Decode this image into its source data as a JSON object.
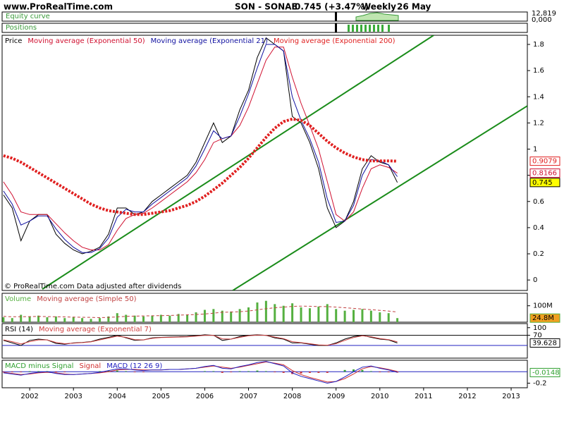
{
  "header": {
    "site": "www.ProRealTime.com",
    "symbol": "SON - SONAE",
    "quote": "0.745 (+3.47%)",
    "period": "Weekly",
    "date": "26 May"
  },
  "equity": {
    "title": "Equity curve",
    "values": [
      "12,819",
      "0,000"
    ]
  },
  "positions": {
    "title": "Positions"
  },
  "chart_data": [
    {
      "type": "line",
      "x": [
        2001.4,
        2001.6,
        2001.8,
        2002,
        2002.2,
        2002.4,
        2002.6,
        2002.8,
        2003,
        2003.2,
        2003.4,
        2003.6,
        2003.8,
        2004,
        2004.2,
        2004.4,
        2004.6,
        2004.8,
        2005,
        2005.2,
        2005.4,
        2005.6,
        2005.8,
        2006,
        2006.2,
        2006.4,
        2006.6,
        2006.8,
        2007,
        2007.2,
        2007.4,
        2007.6,
        2007.8,
        2008,
        2008.2,
        2008.4,
        2008.6,
        2008.8,
        2009,
        2009.2,
        2009.4,
        2009.6,
        2009.8,
        2010,
        2010.2,
        2010.4
      ],
      "xlim": [
        2001.37,
        2013.37
      ],
      "ylim": [
        -0.08,
        1.87
      ],
      "yticks": [
        0,
        0.2,
        0.4,
        0.6,
        0.8,
        1,
        1.2,
        1.4,
        1.6,
        1.8
      ],
      "annotation": "© ProRealTime.com Data adjusted after dividends",
      "series": [
        {
          "name": "Price",
          "color": "#000000",
          "tag": true,
          "tag_fill": "#ffff00",
          "values": [
            0.65,
            0.55,
            0.3,
            0.45,
            0.5,
            0.5,
            0.35,
            0.28,
            0.23,
            0.2,
            0.22,
            0.25,
            0.35,
            0.55,
            0.55,
            0.5,
            0.52,
            0.6,
            0.65,
            0.7,
            0.75,
            0.8,
            0.9,
            1.05,
            1.2,
            1.05,
            1.1,
            1.3,
            1.45,
            1.7,
            1.85,
            1.8,
            1.75,
            1.25,
            1.2,
            1.05,
            0.85,
            0.55,
            0.4,
            0.45,
            0.6,
            0.85,
            0.95,
            0.9,
            0.88,
            0.745
          ]
        },
        {
          "name": "Moving average (Exponential 50)",
          "color": "#d01030",
          "tag": true,
          "values": [
            0.75,
            0.65,
            0.52,
            0.5,
            0.5,
            0.5,
            0.43,
            0.36,
            0.3,
            0.25,
            0.23,
            0.23,
            0.27,
            0.38,
            0.47,
            0.5,
            0.51,
            0.55,
            0.6,
            0.65,
            0.7,
            0.75,
            0.82,
            0.92,
            1.05,
            1.08,
            1.1,
            1.18,
            1.32,
            1.5,
            1.68,
            1.78,
            1.78,
            1.55,
            1.35,
            1.18,
            1.0,
            0.75,
            0.5,
            0.45,
            0.52,
            0.7,
            0.85,
            0.88,
            0.86,
            0.8166
          ]
        },
        {
          "name": "Moving average (Exponential 21)",
          "color": "#1010a0",
          "values": [
            0.68,
            0.58,
            0.42,
            0.45,
            0.49,
            0.49,
            0.39,
            0.31,
            0.25,
            0.21,
            0.21,
            0.24,
            0.32,
            0.48,
            0.54,
            0.52,
            0.52,
            0.58,
            0.63,
            0.68,
            0.73,
            0.78,
            0.87,
            1.0,
            1.14,
            1.08,
            1.1,
            1.25,
            1.42,
            1.62,
            1.8,
            1.8,
            1.75,
            1.4,
            1.22,
            1.08,
            0.9,
            0.62,
            0.44,
            0.45,
            0.57,
            0.8,
            0.92,
            0.91,
            0.88,
            0.79
          ]
        },
        {
          "name": "Moving average (Exponential 200)",
          "color": "#e02020",
          "dash": true,
          "width": 4,
          "tag": true,
          "values": [
            0.95,
            0.93,
            0.9,
            0.86,
            0.82,
            0.78,
            0.74,
            0.7,
            0.66,
            0.62,
            0.58,
            0.55,
            0.53,
            0.52,
            0.51,
            0.5,
            0.5,
            0.51,
            0.52,
            0.53,
            0.55,
            0.57,
            0.6,
            0.64,
            0.69,
            0.74,
            0.8,
            0.86,
            0.93,
            1.01,
            1.09,
            1.16,
            1.21,
            1.23,
            1.22,
            1.18,
            1.12,
            1.06,
            1.01,
            0.97,
            0.94,
            0.92,
            0.91,
            0.91,
            0.91,
            0.9079
          ]
        }
      ],
      "trendlines": [
        {
          "color": "#1a8c1a",
          "x": [
            2002.29,
            2011.23
          ],
          "values": [
            -0.07,
            1.87
          ]
        },
        {
          "color": "#1a8c1a",
          "x": [
            2006.64,
            2013.37
          ],
          "values": [
            -0.08,
            1.33
          ]
        }
      ]
    },
    {
      "type": "bar",
      "x": [
        2001.4,
        2001.6,
        2001.8,
        2002,
        2002.2,
        2002.4,
        2002.6,
        2002.8,
        2003,
        2003.2,
        2003.4,
        2003.6,
        2003.8,
        2004,
        2004.2,
        2004.4,
        2004.6,
        2004.8,
        2005,
        2005.2,
        2005.4,
        2005.6,
        2005.8,
        2006,
        2006.2,
        2006.4,
        2006.6,
        2006.8,
        2007,
        2007.2,
        2007.4,
        2007.6,
        2007.8,
        2008,
        2008.2,
        2008.4,
        2008.6,
        2008.8,
        2009,
        2009.2,
        2009.4,
        2009.6,
        2009.8,
        2010,
        2010.2,
        2010.4
      ],
      "xlim": [
        2001.37,
        2013.37
      ],
      "ylim": [
        0,
        176
      ],
      "yticks": [
        {
          "value": 100,
          "label": "100M"
        }
      ],
      "series": [
        {
          "name": "Volume",
          "color": "#55b040",
          "tag": true,
          "tag_fill": "#f0a020",
          "values": [
            30,
            25,
            45,
            35,
            40,
            30,
            35,
            25,
            30,
            25,
            20,
            25,
            35,
            55,
            45,
            40,
            35,
            40,
            45,
            40,
            50,
            45,
            60,
            75,
            80,
            70,
            65,
            80,
            90,
            120,
            130,
            110,
            100,
            115,
            90,
            85,
            95,
            110,
            80,
            70,
            75,
            80,
            70,
            60,
            55,
            24.8
          ],
          "value_labels": [
            null,
            null,
            null,
            null,
            null,
            null,
            null,
            null,
            null,
            null,
            null,
            null,
            null,
            null,
            null,
            null,
            null,
            null,
            null,
            null,
            null,
            null,
            null,
            null,
            null,
            null,
            null,
            null,
            null,
            null,
            null,
            null,
            null,
            null,
            null,
            null,
            null,
            null,
            null,
            null,
            null,
            null,
            null,
            null,
            null,
            "24.8M"
          ]
        },
        {
          "name": "Moving average (Simple 50)",
          "type": "line",
          "dash": true,
          "color": "#c04040",
          "values": [
            35,
            33,
            33,
            34,
            35,
            34,
            33,
            32,
            31,
            30,
            29,
            28,
            29,
            32,
            35,
            37,
            38,
            39,
            40,
            41,
            43,
            45,
            47,
            50,
            55,
            60,
            62,
            64,
            68,
            75,
            82,
            88,
            92,
            96,
            98,
            97,
            95,
            95,
            92,
            88,
            84,
            80,
            76,
            72,
            68,
            62
          ]
        }
      ]
    },
    {
      "type": "line",
      "x": [
        2001.4,
        2001.6,
        2001.8,
        2002,
        2002.2,
        2002.4,
        2002.6,
        2002.8,
        2003,
        2003.2,
        2003.4,
        2003.6,
        2003.8,
        2004,
        2004.2,
        2004.4,
        2004.6,
        2004.8,
        2005,
        2005.2,
        2005.4,
        2005.6,
        2005.8,
        2006,
        2006.2,
        2006.4,
        2006.6,
        2006.8,
        2007,
        2007.2,
        2007.4,
        2007.6,
        2007.8,
        2008,
        2008.2,
        2008.4,
        2008.6,
        2008.8,
        2009,
        2009.2,
        2009.4,
        2009.6,
        2009.8,
        2010,
        2010.2,
        2010.4
      ],
      "xlim": [
        2001.37,
        2013.37
      ],
      "ylim": [
        -20,
        116
      ],
      "yticks": [
        100,
        70
      ],
      "levels": [
        {
          "value": 70,
          "color": "#000000"
        },
        {
          "value": 30,
          "color": "#2020c0"
        }
      ],
      "series": [
        {
          "name": "RSI (14)",
          "color": "#000000",
          "tag": true,
          "values": [
            50,
            40,
            30,
            50,
            55,
            52,
            38,
            35,
            40,
            42,
            45,
            55,
            62,
            70,
            60,
            50,
            52,
            60,
            62,
            63,
            64,
            65,
            68,
            72,
            70,
            50,
            55,
            65,
            70,
            72,
            70,
            60,
            55,
            40,
            40,
            35,
            30,
            30,
            40,
            55,
            65,
            70,
            62,
            55,
            52,
            39.628
          ]
        },
        {
          "name": "Moving average (Exponential 7)",
          "color": "#d04040",
          "values": [
            52,
            45,
            36,
            45,
            52,
            52,
            42,
            37,
            39,
            41,
            44,
            52,
            59,
            67,
            62,
            53,
            52,
            58,
            61,
            62,
            63,
            64,
            67,
            70,
            70,
            56,
            55,
            62,
            68,
            71,
            70,
            63,
            57,
            45,
            41,
            37,
            32,
            31,
            37,
            50,
            61,
            68,
            64,
            57,
            53,
            44
          ]
        }
      ]
    },
    {
      "type": "line",
      "x": [
        2001.4,
        2001.6,
        2001.8,
        2002,
        2002.2,
        2002.4,
        2002.6,
        2002.8,
        2003,
        2003.2,
        2003.4,
        2003.6,
        2003.8,
        2004,
        2004.2,
        2004.4,
        2004.6,
        2004.8,
        2005,
        2005.2,
        2005.4,
        2005.6,
        2005.8,
        2006,
        2006.2,
        2006.4,
        2006.6,
        2006.8,
        2007,
        2007.2,
        2007.4,
        2007.6,
        2007.8,
        2008,
        2008.2,
        2008.4,
        2008.6,
        2008.8,
        2009,
        2009.2,
        2009.4,
        2009.6,
        2009.8,
        2010,
        2010.2,
        2010.4
      ],
      "xlim": [
        2001.37,
        2013.37
      ],
      "xticks": [
        2002,
        2003,
        2004,
        2005,
        2006,
        2007,
        2008,
        2009,
        2010,
        2011,
        2012,
        2013
      ],
      "ylim": [
        -0.28,
        0.2
      ],
      "yticks": [
        -0.2
      ],
      "levels": [
        {
          "value": 0,
          "color": "#2020c0"
        }
      ],
      "series": [
        {
          "name": "MACD minus Signal",
          "type": "bar",
          "color": "#30a030",
          "negative_color": "#d03030",
          "tag": true,
          "values": [
            -0.01,
            -0.01,
            -0.01,
            0.01,
            0.01,
            0.01,
            -0.01,
            -0.01,
            0,
            0,
            0,
            0.01,
            0.02,
            0.02,
            0.01,
            -0.01,
            -0.01,
            0,
            0,
            0,
            0,
            0,
            0,
            0.01,
            0.01,
            -0.02,
            -0.01,
            0.01,
            0.01,
            0.02,
            0.01,
            -0.01,
            -0.02,
            -0.04,
            -0.03,
            -0.02,
            -0.02,
            -0.02,
            0,
            0.03,
            0.04,
            0.03,
            0.01,
            -0.01,
            -0.01,
            -0.0148
          ]
        },
        {
          "name": "Signal",
          "color": "#d03030",
          "values": [
            -0.01,
            -0.03,
            -0.05,
            -0.04,
            -0.02,
            -0.01,
            -0.02,
            -0.04,
            -0.05,
            -0.04,
            -0.03,
            -0.02,
            0,
            0.03,
            0.04,
            0.04,
            0.03,
            0.03,
            0.03,
            0.04,
            0.04,
            0.05,
            0.06,
            0.08,
            0.1,
            0.08,
            0.06,
            0.08,
            0.11,
            0.14,
            0.17,
            0.15,
            0.12,
            0.02,
            -0.05,
            -0.1,
            -0.14,
            -0.18,
            -0.17,
            -0.12,
            -0.04,
            0.05,
            0.09,
            0.07,
            0.04,
            0.0048
          ]
        },
        {
          "name": "MACD (12 26 9)",
          "color": "#2020c0",
          "values": [
            -0.02,
            -0.04,
            -0.06,
            -0.03,
            -0.01,
            0,
            -0.03,
            -0.05,
            -0.05,
            -0.04,
            -0.03,
            -0.01,
            0.02,
            0.05,
            0.05,
            0.03,
            0.02,
            0.03,
            0.03,
            0.04,
            0.04,
            0.05,
            0.06,
            0.09,
            0.11,
            0.06,
            0.05,
            0.09,
            0.12,
            0.16,
            0.18,
            0.14,
            0.1,
            -0.02,
            -0.08,
            -0.12,
            -0.16,
            -0.2,
            -0.17,
            -0.09,
            0,
            0.08,
            0.1,
            0.06,
            0.03,
            -0.01
          ]
        }
      ]
    }
  ]
}
